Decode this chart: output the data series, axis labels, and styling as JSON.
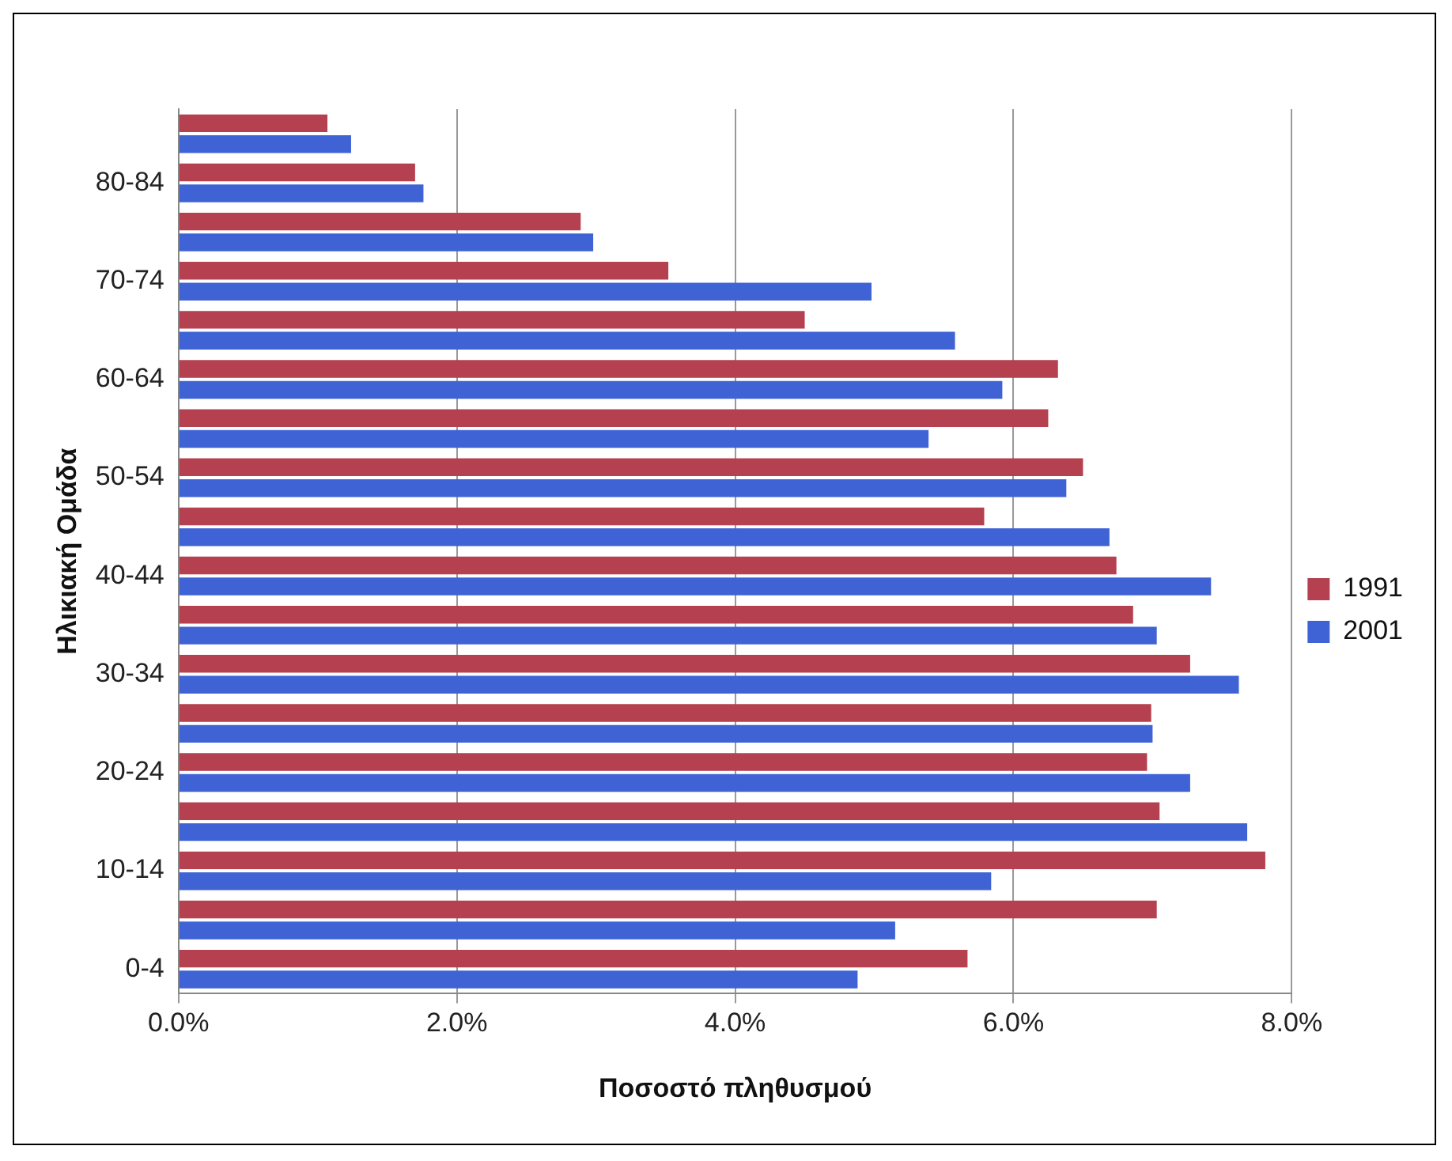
{
  "chart_data": {
    "type": "bar",
    "orientation": "horizontal",
    "xlabel": "Ποσοστό πληθυσμού",
    "ylabel": "Ηλικιακή Ομάδα",
    "categories": [
      null,
      "80-84",
      null,
      "70-74",
      null,
      "60-64",
      null,
      "50-54",
      null,
      "40-44",
      null,
      "30-34",
      null,
      "20-24",
      null,
      "10-14",
      null,
      "0-4"
    ],
    "series": [
      {
        "name": "1991",
        "color": "#b5404f",
        "values": [
          1.07,
          1.7,
          2.89,
          3.52,
          4.5,
          6.32,
          6.25,
          6.5,
          5.79,
          6.74,
          6.86,
          7.27,
          6.99,
          6.96,
          7.05,
          7.81,
          7.03,
          5.67
        ]
      },
      {
        "name": "2001",
        "color": "#3f63d4",
        "values": [
          1.24,
          1.76,
          2.98,
          4.98,
          5.58,
          5.92,
          5.39,
          6.38,
          6.69,
          7.42,
          7.03,
          7.62,
          7.0,
          7.27,
          7.68,
          5.84,
          5.15,
          4.88
        ]
      }
    ],
    "xlim": [
      0,
      8
    ],
    "xticks": [
      {
        "value": 0,
        "label": "0.0%"
      },
      {
        "value": 2,
        "label": "2.0%"
      },
      {
        "value": 4,
        "label": "4.0%"
      },
      {
        "value": 6,
        "label": "6.0%"
      },
      {
        "value": 8,
        "label": "8.0%"
      }
    ],
    "grid": "x",
    "legend": "right"
  }
}
